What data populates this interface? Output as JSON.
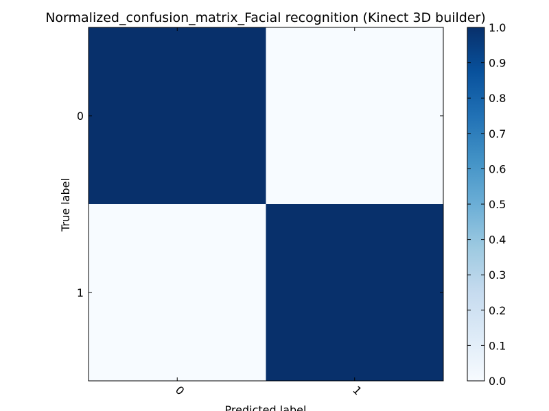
{
  "chart_data": {
    "type": "heatmap",
    "title": "Normalized_confusion_matrix_Facial recognition (Kinect 3D builder)",
    "xlabel": "Predicted label",
    "ylabel": "True label",
    "x_categories": [
      "0",
      "1"
    ],
    "y_categories": [
      "0",
      "1"
    ],
    "values": [
      [
        1.0,
        0.0
      ],
      [
        0.0,
        1.0
      ]
    ],
    "colormap": "Blues",
    "colorbar": {
      "range": [
        0.0,
        1.0
      ],
      "ticks": [
        "0.0",
        "0.1",
        "0.2",
        "0.3",
        "0.4",
        "0.5",
        "0.6",
        "0.7",
        "0.8",
        "0.9",
        "1.0"
      ]
    },
    "colors": {
      "high": "#08306b",
      "low": "#f7fbff"
    }
  }
}
